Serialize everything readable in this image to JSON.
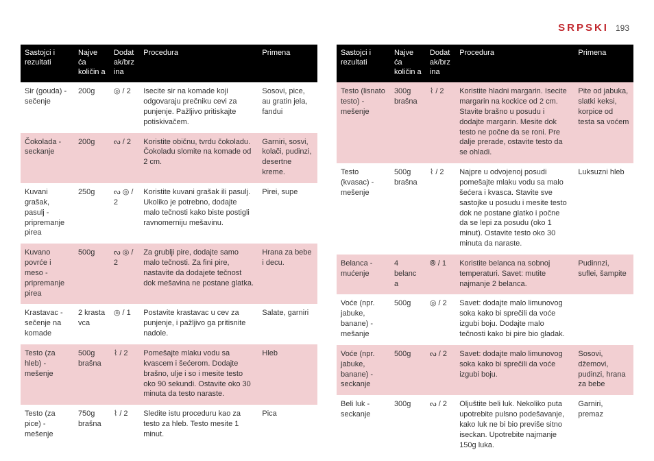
{
  "header": {
    "language": "Srpski",
    "pageNumber": "193"
  },
  "columns": {
    "c1": "Sastojci i rezultati",
    "c2": "Najve ća količin a",
    "c3": "Dodat ak/brz ina",
    "c4": "Procedura",
    "c5": "Primena"
  },
  "leftRows": [
    {
      "alt": false,
      "ing": "Sir (gouda) - sečenje",
      "qty": "200g",
      "ad": "◎ / 2",
      "proc": "Isecite sir na komade koji odgovaraju prečniku cevi za punjenje. Pažljivo pritiskajte potiskivačem.",
      "app": "Sosovi, pice, au gratin jela, fandui"
    },
    {
      "alt": true,
      "ing": "Čokolada - seckanje",
      "qty": "200g",
      "ad": "ᔓ / 2",
      "proc": "Koristite običnu, tvrdu čokoladu. Čokoladu slomite na komade od 2 cm.",
      "app": "Garniri, sosvi, kolači, pudinzi, desertne kreme."
    },
    {
      "alt": false,
      "ing": "Kuvani grašak, pasulj - pripremanje pirea",
      "qty": "250g",
      "ad": "ᔓ ◎ / 2",
      "proc": "Koristite kuvani grašak ili pasulj. Ukoliko je potrebno, dodajte malo tečnosti kako biste postigli ravnomerniju mešavinu.",
      "app": "Pirei, supe"
    },
    {
      "alt": true,
      "ing": "Kuvano povrće i meso - pripremanje pirea",
      "qty": "500g",
      "ad": "ᔓ ◎ / 2",
      "proc": "Za grublji pire, dodajte samo malo tečnosti. Za fini pire, nastavite da dodajete tečnost dok mešavina ne postane glatka.",
      "app": "Hrana za bebe i decu."
    },
    {
      "alt": false,
      "ing": "Krastavac - sečenje na komade",
      "qty": "2 krasta vca",
      "ad": "◎ / 1",
      "proc": "Postavite krastavac u cev za punjenje, i pažljivo ga pritisnite nadole.",
      "app": "Salate, garniri"
    },
    {
      "alt": true,
      "ing": "Testo (za hleb) - mešenje",
      "qty": "500g brašna",
      "ad": "⌇ / 2",
      "proc": "Pomešajte mlaku vodu sa kvascem i šećerom. Dodajte brašno, ulje i so i mesite testo oko 90 sekundi. Ostavite oko 30 minuta da testo naraste.",
      "app": "Hleb"
    },
    {
      "alt": false,
      "ing": "Testo (za pice) - mešenje",
      "qty": "750g brašna",
      "ad": "⌇ / 2",
      "proc": "Sledite istu proceduru kao za testo za hleb. Testo mesite 1 minut.",
      "app": "Pica"
    }
  ],
  "rightRows": [
    {
      "alt": true,
      "ing": "Testo (lisnato testo) - mešenje",
      "qty": "300g brašna",
      "ad": "⌇ / 2",
      "proc": "Koristite hladni margarin. Isecite margarin na kockice od 2 cm. Stavite brašno u posudu i dodajte margarin. Mesite dok testo ne počne da se roni. Pre dalje prerade, ostavite testo da se ohladi.",
      "app": "Pite od jabuka, slatki keksi, korpice od testa sa voćem"
    },
    {
      "alt": false,
      "ing": "Testo (kvasac) - mešenje",
      "qty": "500g brašna",
      "ad": "⌇ / 2",
      "proc": "Najpre u odvojenoj posudi pomešajte mlaku vodu sa malo šećera i kvasca. Stavite sve sastojke u posudu i mesite testo dok ne postane glatko i počne da se lepi za posudu (oko 1 minut). Ostavite testo oko 30 minuta da naraste.",
      "app": "Luksuzni hleb"
    },
    {
      "alt": true,
      "ing": "Belanca - mućenje",
      "qty": "4 belanc a",
      "ad": "⦾ / 1",
      "proc": "Koristite belanca na sobnoj temperaturi. Savet: mutite najmanje 2 belanca.",
      "app": "Pudinnzi, suflei, šampite"
    },
    {
      "alt": false,
      "ing": "Voće (npr. jabuke, banane) - mešanje",
      "qty": "500g",
      "ad": "◎ / 2",
      "proc": "Savet: dodajte malo limunovog soka kako bi sprečili da voće izgubi boju. Dodajte malo tečnosti kako bi pire bio gladak.",
      "app": ""
    },
    {
      "alt": true,
      "ing": "Voće (npr. jabuke, banane) - seckanje",
      "qty": "500g",
      "ad": "ᔓ / 2",
      "proc": "Savet: dodajte malo limunovog soka kako bi sprečili da voće izgubi boju.",
      "app": "Sosovi, džemovi, pudinzi, hrana za bebe"
    },
    {
      "alt": false,
      "ing": "Beli luk - seckanje",
      "qty": "300g",
      "ad": "ᔓ / 2",
      "proc": "Oljuštite beli luk. Nekoliko puta upotrebite pulsno podešavanje, kako luk ne bi bio previše sitno iseckan. Upotrebite najmanje 150g luka.",
      "app": "Garniri, premaz"
    }
  ],
  "colors": {
    "headerBg": "#000000",
    "headerText": "#ffffff",
    "altRowBg": "#f2cfd2",
    "langColor": "#c1272d",
    "bodyText": "#333333"
  }
}
